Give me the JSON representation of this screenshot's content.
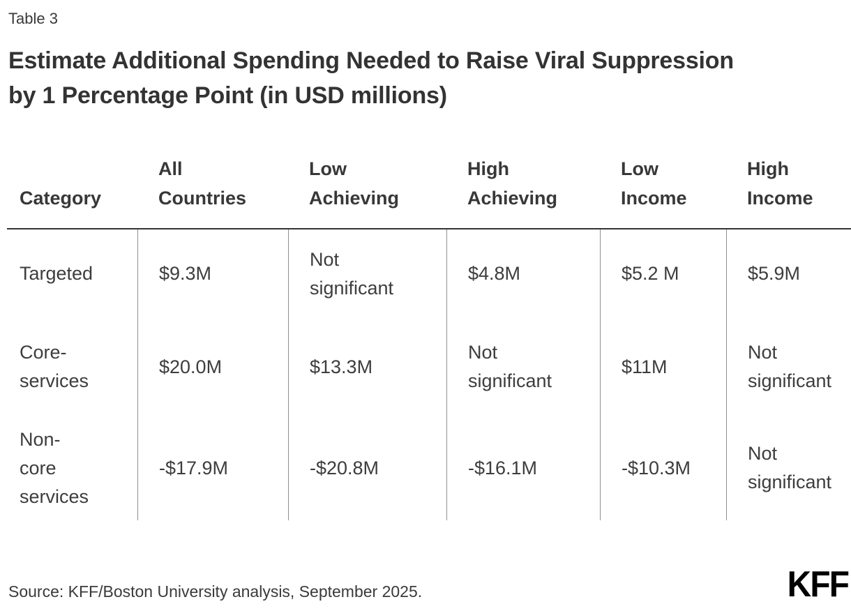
{
  "table_label": "Table 3",
  "title": "Estimate Additional Spending Needed to Raise Viral Suppression by 1 Percentage Point (in USD millions)",
  "source": "Source: KFF/Boston University analysis, September 2025.",
  "logo_text": "KFF",
  "colors": {
    "text": "#3a3a3a",
    "title": "#333333",
    "header_rule": "#333333",
    "column_divider": "#8f8f8f",
    "logo": "#000000",
    "background": "#ffffff"
  },
  "display": {
    "header": [
      "Category",
      "All\nCountries",
      "Low\nAchieving",
      "High\nAchieving",
      "Low\nIncome",
      "High\nIncome"
    ],
    "rows": [
      {
        "label": "Targeted",
        "cells": [
          "$9.3M",
          "Not\nsignificant",
          "$4.8M",
          "$5.2 M",
          "$5.9M"
        ]
      },
      {
        "label": "Core-\nservices",
        "cells": [
          "$20.0M",
          "$13.3M",
          "Not\nsignificant",
          "$11M",
          "Not\nsignificant"
        ]
      },
      {
        "label": "Non-\ncore\nservices",
        "cells": [
          "-$17.9M",
          "-$20.8M",
          "-$16.1M",
          "-$10.3M",
          "Not\nsignificant"
        ]
      }
    ]
  },
  "chart_data": {
    "type": "table",
    "title": "Estimate Additional Spending Needed to Raise Viral Suppression by 1 Percentage Point (in USD millions)",
    "columns": [
      "Category",
      "All Countries",
      "Low Achieving",
      "High Achieving",
      "Low Income",
      "High Income"
    ],
    "rows": [
      [
        "Targeted",
        "$9.3M",
        "Not significant",
        "$4.8M",
        "$5.2 M",
        "$5.9M"
      ],
      [
        "Core-services",
        "$20.0M",
        "$13.3M",
        "Not significant",
        "$11M",
        "Not significant"
      ],
      [
        "Non-core services",
        "-$17.9M",
        "-$20.8M",
        "-$16.1M",
        "-$10.3M",
        "Not significant"
      ]
    ],
    "values_usd_millions": {
      "Targeted": {
        "All Countries": 9.3,
        "Low Achieving": null,
        "High Achieving": 4.8,
        "Low Income": 5.2,
        "High Income": 5.9
      },
      "Core-services": {
        "All Countries": 20.0,
        "Low Achieving": 13.3,
        "High Achieving": null,
        "Low Income": 11,
        "High Income": null
      },
      "Non-core services": {
        "All Countries": -17.9,
        "Low Achieving": -20.8,
        "High Achieving": -16.1,
        "Low Income": -10.3,
        "High Income": null
      }
    },
    "note": "null = Not significant"
  }
}
